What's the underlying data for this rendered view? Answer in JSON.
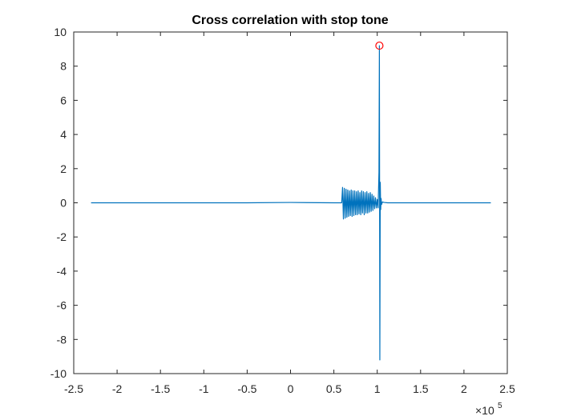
{
  "chart_data": {
    "type": "line",
    "title": "Cross correlation with stop tone",
    "xlabel": "",
    "ylabel": "",
    "xlim": [
      -250000,
      250000
    ],
    "ylim": [
      -10,
      10
    ],
    "x_exponent_label": {
      "base": "×10",
      "power": "5"
    },
    "x_ticks": [
      -250000,
      -200000,
      -150000,
      -100000,
      -50000,
      0,
      50000,
      100000,
      150000,
      200000,
      250000
    ],
    "x_tick_labels": [
      "-2.5",
      "-2",
      "-1.5",
      "-1",
      "-0.5",
      "0",
      "0.5",
      "1",
      "1.5",
      "2",
      "2.5"
    ],
    "y_ticks": [
      -10,
      -8,
      -6,
      -4,
      -2,
      0,
      2,
      4,
      6,
      8,
      10
    ],
    "y_tick_labels": [
      "-10",
      "-8",
      "-6",
      "-4",
      "-2",
      "0",
      "2",
      "4",
      "6",
      "8",
      "10"
    ],
    "grid": false,
    "series": [
      {
        "color": "#0072BD",
        "x": [
          -230000,
          -150000,
          -50000,
          0,
          50000,
          59000,
          60000,
          61000,
          62000,
          63000,
          64000,
          65000,
          66000,
          67000,
          68000,
          69000,
          70000,
          71000,
          72000,
          73000,
          74000,
          75000,
          76000,
          77000,
          78000,
          79000,
          80000,
          81000,
          82000,
          83000,
          84000,
          85000,
          86000,
          87000,
          88000,
          89000,
          90000,
          91000,
          92000,
          93000,
          94000,
          95000,
          96000,
          97000,
          98000,
          99000,
          100000,
          101000,
          102000,
          102500,
          103000,
          103500,
          104000,
          104500,
          105000,
          106000,
          108000,
          112000,
          150000,
          200000,
          231000
        ],
        "y": [
          0,
          0,
          0,
          0.02,
          0,
          0,
          0.9,
          -0.95,
          0.85,
          -0.9,
          0.8,
          -0.85,
          0.75,
          -0.8,
          0.7,
          -0.75,
          0.75,
          -0.8,
          0.7,
          -0.75,
          0.7,
          -0.7,
          0.65,
          -0.7,
          0.7,
          -0.65,
          0.6,
          -0.7,
          0.7,
          -0.6,
          0.65,
          -0.7,
          0.6,
          -0.6,
          0.65,
          -0.6,
          0.55,
          -0.55,
          0.6,
          -0.5,
          0.5,
          -0.45,
          0.4,
          -0.35,
          0.3,
          -0.3,
          0.2,
          -0.3,
          1.8,
          9.2,
          -9.2,
          1.2,
          -0.4,
          0.25,
          -0.1,
          0.05,
          0.02,
          0,
          0,
          0,
          0
        ]
      }
    ],
    "markers": [
      {
        "x": 102500,
        "y": 9.2,
        "color": "#FF0000",
        "shape": "circle"
      }
    ]
  }
}
